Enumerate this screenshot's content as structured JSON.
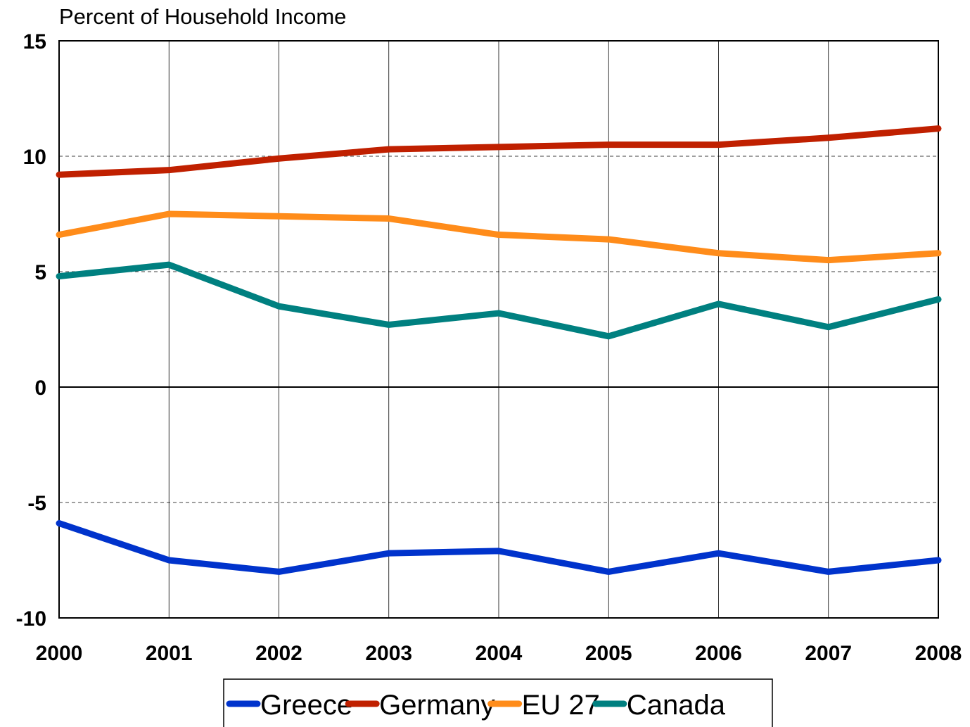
{
  "chart_data": {
    "type": "line",
    "title": "Percent of Household Income",
    "x": [
      2000,
      2001,
      2002,
      2003,
      2004,
      2005,
      2006,
      2007,
      2008
    ],
    "series": [
      {
        "name": "Greece",
        "color": "#0033cc",
        "values": [
          -5.9,
          -7.5,
          -8.0,
          -7.2,
          -7.1,
          -8.0,
          -7.2,
          -8.0,
          -7.5
        ]
      },
      {
        "name": "Germany",
        "color": "#c02000",
        "values": [
          9.2,
          9.4,
          9.9,
          10.3,
          10.4,
          10.5,
          10.5,
          10.8,
          11.2
        ]
      },
      {
        "name": "EU 27",
        "color": "#ff8c1a",
        "values": [
          6.6,
          7.5,
          7.4,
          7.3,
          6.6,
          6.4,
          5.8,
          5.5,
          5.8
        ]
      },
      {
        "name": "Canada",
        "color": "#008080",
        "values": [
          4.8,
          5.3,
          3.5,
          2.7,
          3.2,
          2.2,
          3.6,
          2.6,
          3.8
        ]
      }
    ],
    "xlim": [
      2000,
      2008
    ],
    "xticks": [
      2000,
      2001,
      2002,
      2003,
      2004,
      2005,
      2006,
      2007,
      2008
    ],
    "ylim": [
      -10,
      15
    ],
    "yticks": [
      -10,
      -5,
      0,
      5,
      10,
      15
    ],
    "grid": true,
    "legend": "bottom"
  }
}
